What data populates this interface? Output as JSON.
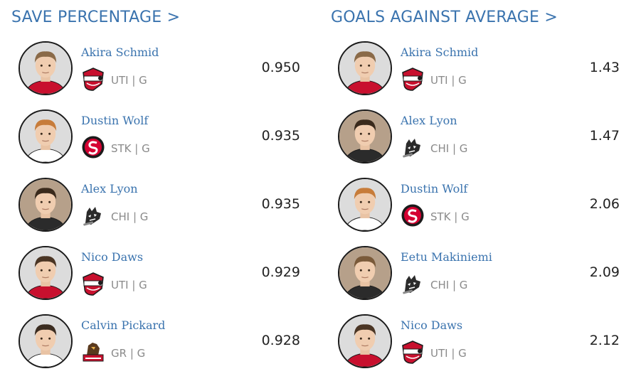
{
  "panels": {
    "save_percentage": {
      "title": "SAVE PERCENTAGE >",
      "rows": [
        {
          "name": "Akira Schmid",
          "team": "UTI",
          "position": "G",
          "value": "0.950",
          "team_logo": "utica-comets-logo"
        },
        {
          "name": "Dustin Wolf",
          "team": "STK",
          "position": "G",
          "value": "0.935",
          "team_logo": "stockton-heat-logo"
        },
        {
          "name": "Alex Lyon",
          "team": "CHI",
          "position": "G",
          "value": "0.935",
          "team_logo": "chicago-wolves-logo"
        },
        {
          "name": "Nico Daws",
          "team": "UTI",
          "position": "G",
          "value": "0.929",
          "team_logo": "utica-comets-logo"
        },
        {
          "name": "Calvin Pickard",
          "team": "GR",
          "position": "G",
          "value": "0.928",
          "team_logo": "grand-rapids-griffins-logo"
        }
      ]
    },
    "goals_against_average": {
      "title": "GOALS AGAINST AVERAGE >",
      "rows": [
        {
          "name": "Akira Schmid",
          "team": "UTI",
          "position": "G",
          "value": "1.43",
          "team_logo": "utica-comets-logo"
        },
        {
          "name": "Alex Lyon",
          "team": "CHI",
          "position": "G",
          "value": "1.47",
          "team_logo": "chicago-wolves-logo"
        },
        {
          "name": "Dustin Wolf",
          "team": "STK",
          "position": "G",
          "value": "2.06",
          "team_logo": "stockton-heat-logo"
        },
        {
          "name": "Eetu Makiniemi",
          "team": "CHI",
          "position": "G",
          "value": "2.09",
          "team_logo": "chicago-wolves-logo"
        },
        {
          "name": "Nico Daws",
          "team": "UTI",
          "position": "G",
          "value": "2.12",
          "team_logo": "utica-comets-logo"
        }
      ]
    }
  },
  "colors": {
    "link": "#3a73ae",
    "stat_text": "#222222",
    "meta_text": "#8a8a8a",
    "utica_red": "#c8102e",
    "stockton_red": "#d50032",
    "chicago_dark": "#2b2b2b",
    "griffins_brown": "#5a3a1e"
  },
  "meta_separator": " | "
}
